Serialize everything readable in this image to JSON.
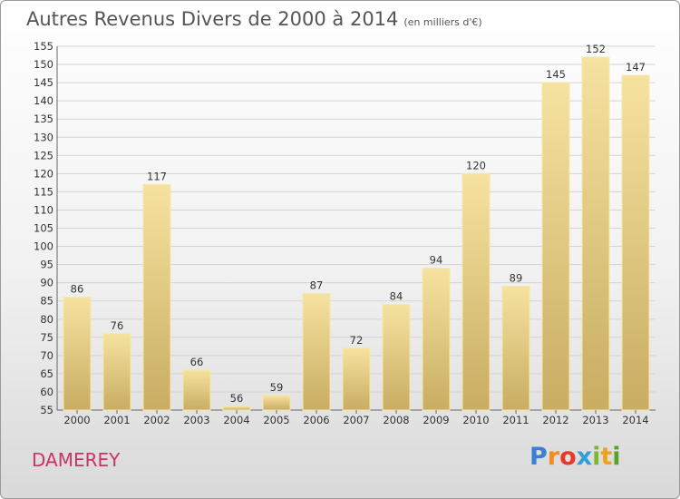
{
  "title": "Autres Revenus Divers de 2000 à 2014",
  "subtitle": "(en milliers d'€)",
  "commune": "DAMEREY",
  "logo": {
    "letters": [
      "P",
      "r",
      "o",
      "x",
      "i",
      "t",
      "i"
    ],
    "colors": [
      "#3a7fd0",
      "#f28c1e",
      "#e8382a",
      "#2e9fd8",
      "#7ab833",
      "#f0a21c",
      "#5aa02c"
    ]
  },
  "colors": {
    "bar_light": "#f6e2a0",
    "bar_dark": "#c8ad62",
    "bar_edge": "#f8e7a6",
    "grid": "#d3d3d3",
    "axis_text": "#333333"
  },
  "chart_data": {
    "type": "bar",
    "title": "Autres Revenus Divers de 2000 à 2014",
    "subtitle": "(en milliers d'€)",
    "categories": [
      "2000",
      "2001",
      "2002",
      "2003",
      "2004",
      "2005",
      "2006",
      "2007",
      "2008",
      "2009",
      "2010",
      "2011",
      "2012",
      "2013",
      "2014"
    ],
    "values": [
      86,
      76,
      117,
      66,
      56,
      59,
      87,
      72,
      84,
      94,
      120,
      89,
      145,
      152,
      147
    ],
    "ylim": [
      55,
      155
    ],
    "ytick_step": 5,
    "grid": true,
    "legend": "none",
    "xlabel": "",
    "ylabel": ""
  }
}
